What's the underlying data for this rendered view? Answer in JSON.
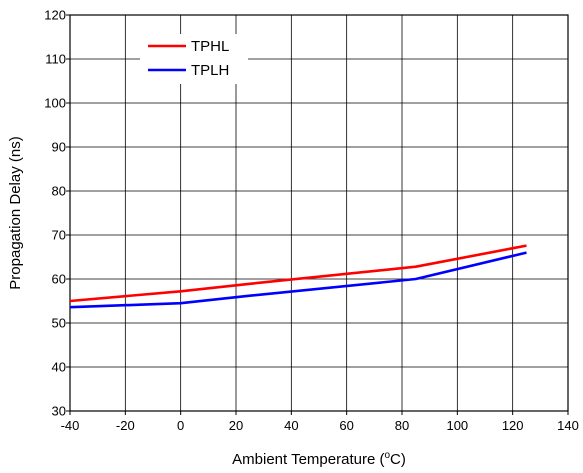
{
  "chart_data": {
    "type": "line",
    "title": "",
    "xlabel": "Ambient Temperature (",
    "xlabel_sup": "o",
    "xlabel_suffix": "C)",
    "ylabel": "Propagation Delay (ns)",
    "xlim": [
      -40,
      140
    ],
    "ylim": [
      30,
      120
    ],
    "xticks": [
      "-40",
      "-20",
      "0",
      "20",
      "40",
      "60",
      "80",
      "100",
      "120",
      "140"
    ],
    "yticks": [
      "30",
      "40",
      "50",
      "60",
      "70",
      "80",
      "90",
      "100",
      "110",
      "120"
    ],
    "grid": true,
    "legend_position": "top-left",
    "series": [
      {
        "name": "TPHL",
        "color": "#ff0000",
        "x": [
          -40,
          0,
          25,
          85,
          125
        ],
        "y": [
          55,
          57.2,
          58.9,
          62.8,
          67.6
        ]
      },
      {
        "name": "TPLH",
        "color": "#0000ff",
        "x": [
          -40,
          0,
          25,
          85,
          125
        ],
        "y": [
          53.6,
          54.5,
          56.2,
          60,
          66
        ]
      }
    ]
  }
}
